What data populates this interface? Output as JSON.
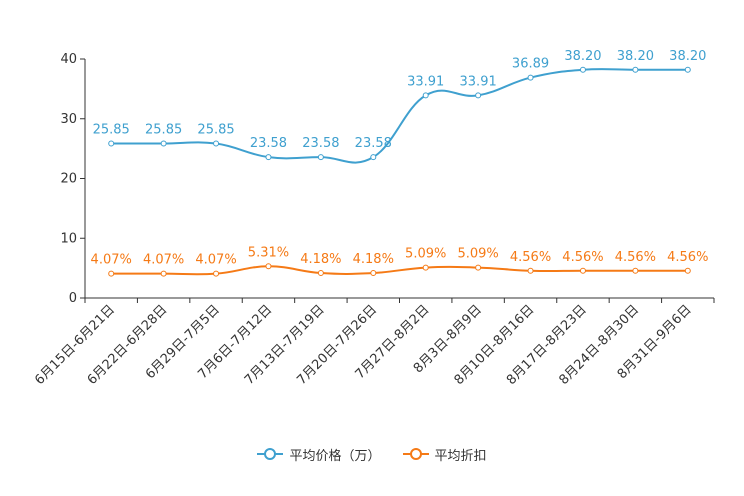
{
  "chart_data": {
    "type": "line",
    "categories": [
      "6月15日-6月21日",
      "6月22日-6月28日",
      "6月29日-7月5日",
      "7月6日-7月12日",
      "7月13日-7月19日",
      "7月20日-7月26日",
      "7月27日-8月2日",
      "8月3日-8月9日",
      "8月10日-8月16日",
      "8月17日-8月23日",
      "8月24日-8月30日",
      "8月31日-9月6日"
    ],
    "ylim": [
      0,
      40
    ],
    "yticks": [
      0,
      10,
      20,
      30,
      40
    ],
    "series": [
      {
        "name": "平均价格（万）",
        "color": "#3fa0cf",
        "values": [
          25.85,
          25.85,
          25.85,
          23.58,
          23.58,
          23.58,
          33.91,
          33.91,
          36.89,
          38.2,
          38.2,
          38.2
        ],
        "labels": [
          "25.85",
          "25.85",
          "25.85",
          "23.58",
          "23.58",
          "23.58",
          "33.91",
          "33.91",
          "36.89",
          "38.20",
          "38.20",
          "38.20"
        ]
      },
      {
        "name": "平均折扣",
        "color": "#f57a16",
        "values": [
          4.07,
          4.07,
          4.07,
          5.31,
          4.18,
          4.18,
          5.09,
          5.09,
          4.56,
          4.56,
          4.56,
          4.56
        ],
        "labels": [
          "4.07%",
          "4.07%",
          "4.07%",
          "5.31%",
          "4.18%",
          "4.18%",
          "5.09%",
          "5.09%",
          "4.56%",
          "4.56%",
          "4.56%",
          "4.56%"
        ]
      }
    ]
  },
  "legend": {
    "price_label": "平均价格（万）",
    "discount_label": "平均折扣"
  }
}
